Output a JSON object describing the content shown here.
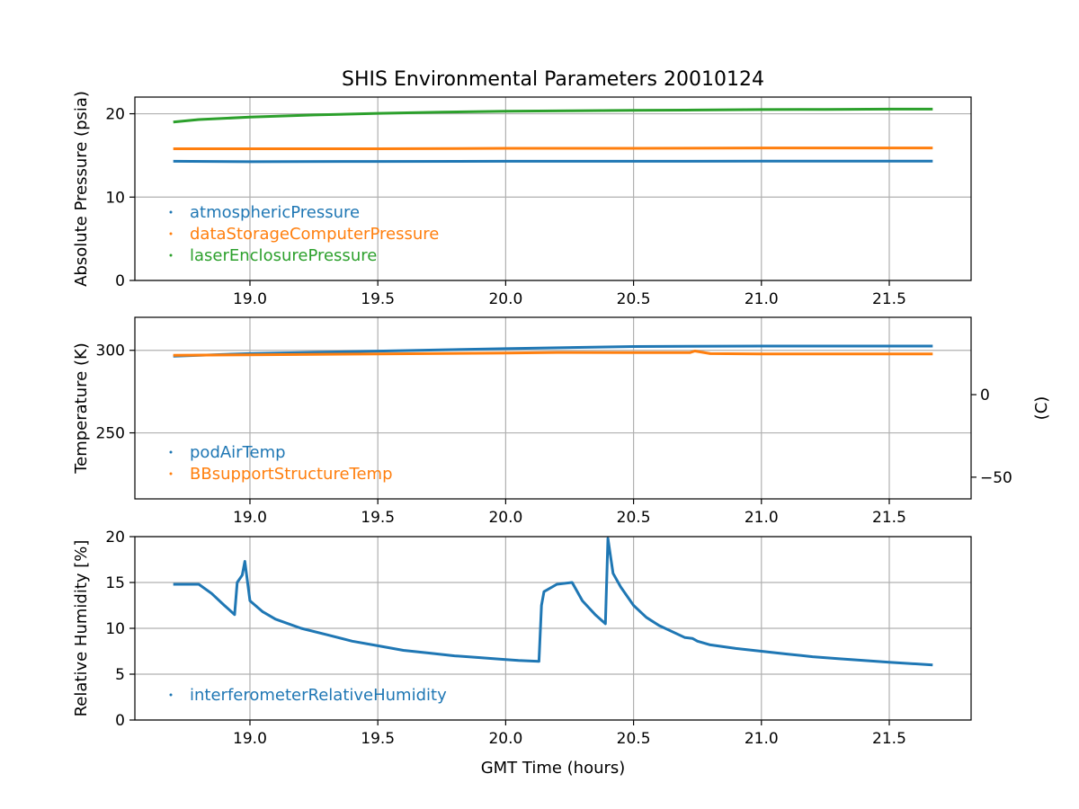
{
  "title": "SHIS Environmental Parameters 20010124",
  "xlabel": "GMT Time (hours)",
  "colors": {
    "blue": "#1f77b4",
    "orange": "#ff7f0e",
    "green": "#2ca02c"
  },
  "chart_data": [
    {
      "type": "scatter",
      "ylabel": "Absolute Pressure (psia)",
      "xlim": [
        18.55,
        21.82
      ],
      "ylim": [
        0,
        22
      ],
      "xticks": [
        "19.0",
        "19.5",
        "20.0",
        "20.5",
        "21.0",
        "21.5"
      ],
      "yticks": [
        "0",
        "10",
        "20"
      ],
      "grid": true,
      "legend": "lower-left",
      "series": [
        {
          "name": "atmosphericPressure",
          "color": "#1f77b4",
          "x": [
            18.7,
            19.0,
            19.5,
            20.0,
            20.5,
            21.0,
            21.67
          ],
          "y": [
            14.3,
            14.25,
            14.28,
            14.3,
            14.3,
            14.32,
            14.32
          ]
        },
        {
          "name": "dataStorageComputerPressure",
          "color": "#ff7f0e",
          "x": [
            18.7,
            19.0,
            19.5,
            20.0,
            20.5,
            21.0,
            21.67
          ],
          "y": [
            15.8,
            15.8,
            15.8,
            15.85,
            15.85,
            15.9,
            15.9
          ]
        },
        {
          "name": "laserEnclosurePressure",
          "color": "#2ca02c",
          "x": [
            18.7,
            18.8,
            19.0,
            19.25,
            19.5,
            19.75,
            20.0,
            20.25,
            20.5,
            20.75,
            21.0,
            21.25,
            21.5,
            21.67
          ],
          "y": [
            19.0,
            19.3,
            19.6,
            19.85,
            20.05,
            20.2,
            20.3,
            20.35,
            20.4,
            20.45,
            20.5,
            20.52,
            20.55,
            20.55
          ]
        }
      ]
    },
    {
      "type": "scatter",
      "ylabel": "Temperature (K)",
      "ylabel_right": "(C)",
      "xlim": [
        18.55,
        21.82
      ],
      "ylim": [
        210,
        320
      ],
      "xticks": [
        "19.0",
        "19.5",
        "20.0",
        "20.5",
        "21.0",
        "21.5"
      ],
      "yticks": [
        "250",
        "300"
      ],
      "yticks_right": [
        "0",
        "−50"
      ],
      "grid": true,
      "legend": "lower-left",
      "series": [
        {
          "name": "podAirTemp",
          "color": "#1f77b4",
          "x": [
            18.7,
            19.0,
            19.5,
            20.0,
            20.5,
            21.0,
            21.67
          ],
          "y": [
            296.5,
            298.0,
            299.5,
            301.0,
            302.3,
            302.6,
            302.6
          ]
        },
        {
          "name": "BBsupportStructureTemp",
          "color": "#ff7f0e",
          "x": [
            18.7,
            19.0,
            19.5,
            20.0,
            20.2,
            20.5,
            20.72,
            20.74,
            20.8,
            21.0,
            21.67
          ],
          "y": [
            297.0,
            297.3,
            297.8,
            298.3,
            298.7,
            298.6,
            298.6,
            299.6,
            298.0,
            297.8,
            297.8
          ]
        }
      ]
    },
    {
      "type": "scatter",
      "ylabel": "Relative Humidity [%]",
      "xlim": [
        18.55,
        21.82
      ],
      "ylim": [
        0,
        20
      ],
      "xticks": [
        "19.0",
        "19.5",
        "20.0",
        "20.5",
        "21.0",
        "21.5"
      ],
      "yticks": [
        "0",
        "5",
        "10",
        "15",
        "20"
      ],
      "grid": true,
      "legend": "lower-left",
      "series": [
        {
          "name": "interferometerRelativeHumidity",
          "color": "#1f77b4",
          "x": [
            18.7,
            18.8,
            18.85,
            18.9,
            18.94,
            18.95,
            18.97,
            18.98,
            19.0,
            19.05,
            19.1,
            19.2,
            19.3,
            19.4,
            19.5,
            19.6,
            19.7,
            19.8,
            19.9,
            20.0,
            20.05,
            20.13,
            20.14,
            20.15,
            20.2,
            20.26,
            20.3,
            20.35,
            20.39,
            20.4,
            20.42,
            20.45,
            20.5,
            20.55,
            20.6,
            20.7,
            20.73,
            20.75,
            20.8,
            20.9,
            21.0,
            21.1,
            21.2,
            21.3,
            21.4,
            21.5,
            21.67
          ],
          "y": [
            14.8,
            14.8,
            13.8,
            12.5,
            11.5,
            15.0,
            15.8,
            17.3,
            13.0,
            11.8,
            11.0,
            10.0,
            9.3,
            8.6,
            8.1,
            7.6,
            7.3,
            7.0,
            6.8,
            6.6,
            6.5,
            6.4,
            12.5,
            14.0,
            14.8,
            15.0,
            13.0,
            11.5,
            10.5,
            19.8,
            16.0,
            14.5,
            12.5,
            11.2,
            10.3,
            9.0,
            8.9,
            8.6,
            8.2,
            7.8,
            7.5,
            7.2,
            6.9,
            6.7,
            6.5,
            6.3,
            6.0
          ]
        }
      ]
    }
  ]
}
